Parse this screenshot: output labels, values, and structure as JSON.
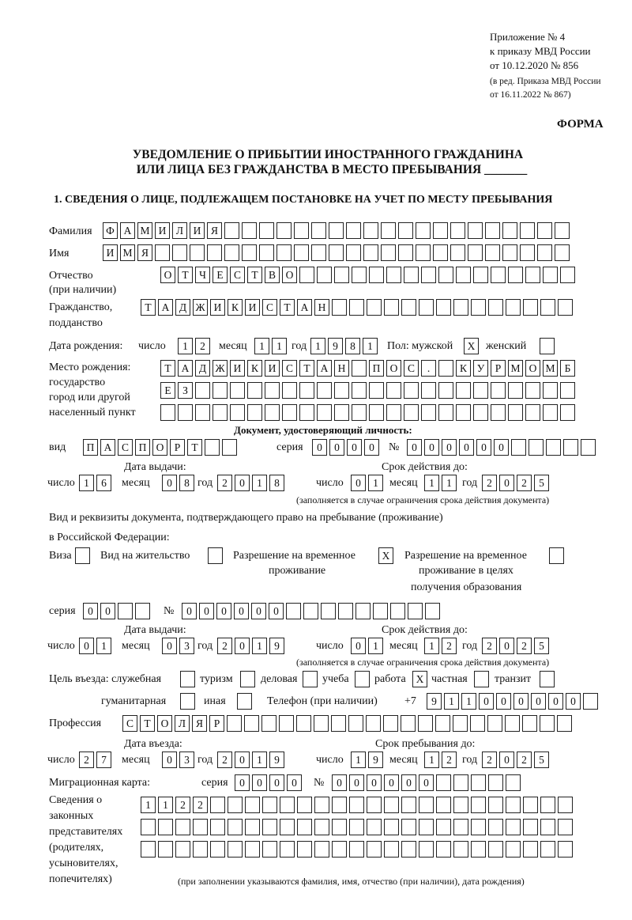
{
  "header": {
    "appendix": "Приложение № 4",
    "order": "к приказу МВД России",
    "order_date": "от 10.12.2020 № 856",
    "edition_1": "(в ред. Приказа МВД России",
    "edition_2": "от 16.11.2022 № 867)",
    "form_label": "ФОРМА",
    "title_1": "УВЕДОМЛЕНИЕ О ПРИБЫТИИ ИНОСТРАННОГО ГРАЖДАНИНА",
    "title_2": "ИЛИ ЛИЦА БЕЗ ГРАЖДАНСТВА В МЕСТО ПРЕБЫВАНИЯ _______",
    "section_1": "1. СВЕДЕНИЯ О ЛИЦЕ, ПОДЛЕЖАЩЕМ ПОСТАНОВКЕ НА УЧЕТ ПО МЕСТУ ПРЕБЫВАНИЯ"
  },
  "person": {
    "surname_label": "Фамилия",
    "surname": "ФАМИЛИЯ",
    "name_label": "Имя",
    "name": "ИМЯ",
    "patronymic_label": "Отчество",
    "patronymic_label_2": "(при наличии)",
    "patronymic": "ОТЧЕСТВО",
    "citizenship_label": "Гражданство,",
    "citizenship_label_2": "подданство",
    "citizenship": "ТАДЖИКИСТАН",
    "dob_label": "Дата рождения:",
    "day_label": "число",
    "month_label": "месяц",
    "year_label": "год",
    "dob_day": "12",
    "dob_month": "11",
    "dob_year": "1981",
    "sex_label": "Пол: мужской",
    "male": "X",
    "female_label": "женский",
    "female": "",
    "birthplace_label_1": "Место рождения:",
    "birthplace_label_2": "государство",
    "birthplace_label_3": "город или другой",
    "birthplace_label_4": "населенный пункт",
    "birthplace_1": "ТАДЖИКИСТАН ПОС. КУРМОМБ",
    "birthplace_2": "ЕЗ",
    "birthplace_3": ""
  },
  "id_doc": {
    "heading": "Документ, удостоверяющий личность:",
    "kind_label": "вид",
    "kind": "ПАСПОРТ",
    "series_label": "серия",
    "series": "0000",
    "number_label": "№",
    "number": "000000",
    "issue_label": "Дата выдачи:",
    "issue_day": "16",
    "issue_month": "08",
    "issue_year": "2018",
    "valid_label": "Срок действия до:",
    "valid_day": "01",
    "valid_month": "11",
    "valid_year": "2025",
    "note": "(заполняется в случае ограничения срока действия документа)"
  },
  "stay_doc": {
    "heading_1": "Вид и реквизиты документа, подтверждающего право на пребывание (проживание)",
    "heading_2": "в Российской Федерации:",
    "visa_label": "Виза",
    "visa": "",
    "residence_label": "Вид на жительство",
    "residence": "",
    "temp_label_1": "Разрешение на временное",
    "temp_label_2": "проживание",
    "temp": "X",
    "edu_label_1": "Разрешение на временное",
    "edu_label_2": "проживание в целях",
    "edu_label_3": "получения образования",
    "edu": "",
    "series_label": "серия",
    "series": "00",
    "number_label": "№",
    "number": "000000",
    "issue_label": "Дата выдачи:",
    "issue_day": "01",
    "issue_month": "03",
    "issue_year": "2019",
    "valid_label": "Срок действия до:",
    "valid_day": "01",
    "valid_month": "12",
    "valid_year": "2025",
    "note": "(заполняется в случае ограничения срока действия документа)"
  },
  "purpose": {
    "label": "Цель въезда: служебная",
    "service": "",
    "tourism_label": "туризм",
    "tourism": "",
    "business_label": "деловая",
    "business": "",
    "study_label": "учеба",
    "study": "",
    "work_label": "работа",
    "work": "X",
    "private_label": "частная",
    "private": "",
    "transit_label": "транзит",
    "transit": "",
    "humanitarian_label": "гуманитарная",
    "humanitarian": "",
    "other_label": "иная",
    "other": "",
    "phone_label": "Телефон (при наличии)",
    "phone_prefix": "+7",
    "phone": "911000000"
  },
  "profession": {
    "label": "Профессия",
    "value": "СТОЛЯР"
  },
  "entry": {
    "entry_label": "Дата въезда:",
    "entry_day": "27",
    "entry_month": "03",
    "entry_year": "2019",
    "stay_label": "Срок пребывания до:",
    "stay_day": "19",
    "stay_month": "12",
    "stay_year": "2025"
  },
  "migration_card": {
    "label": "Миграционная карта:",
    "series_label": "серия",
    "series": "0000",
    "number_label": "№",
    "number": "000000"
  },
  "representatives": {
    "label_1": "Сведения о",
    "label_2": "законных",
    "label_3": "представителях",
    "label_4": "(родителях,",
    "label_5": "усыновителях,",
    "label_6": "попечителях)",
    "row_1": "1122",
    "row_2": "",
    "row_3": "",
    "note": "(при заполнении указываются фамилия, имя, отчество (при наличии), дата рождения)"
  }
}
